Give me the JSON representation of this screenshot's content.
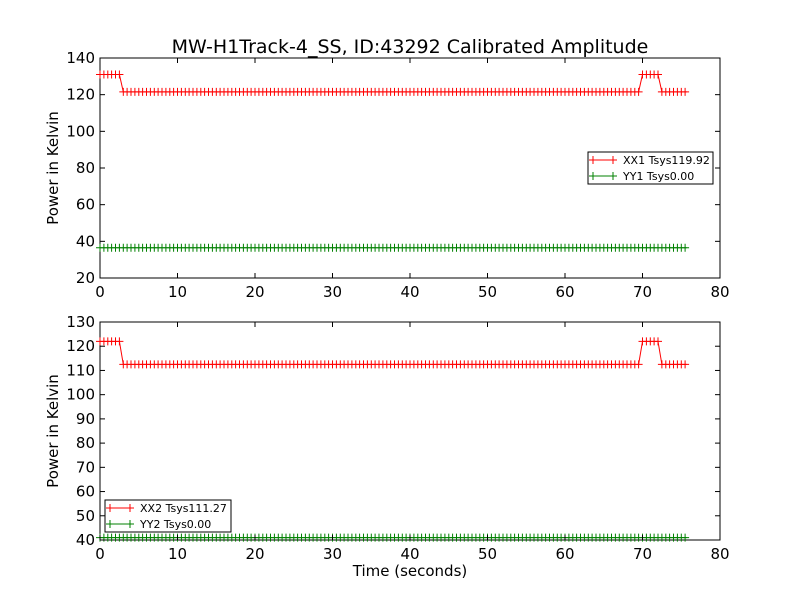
{
  "chart_data": [
    {
      "type": "line",
      "title": "MW-H1Track-4_SS, ID:43292 Calibrated Amplitude",
      "xlabel": "",
      "ylabel": "Power in Kelvin",
      "xlim": [
        0,
        80
      ],
      "ylim": [
        20,
        140
      ],
      "xticks": [
        0,
        10,
        20,
        30,
        40,
        50,
        60,
        70,
        80
      ],
      "yticks": [
        20,
        40,
        60,
        80,
        100,
        120,
        140
      ],
      "grid": false,
      "legend_position": "center-right",
      "series": [
        {
          "name": "XX1 Tsys119.92",
          "color": "#ff0000",
          "marker": "+",
          "points": [
            [
              0,
              131
            ],
            [
              2.5,
              131
            ],
            [
              3,
              121.5
            ],
            [
              69.5,
              121.5
            ],
            [
              70,
              131
            ],
            [
              72,
              131
            ],
            [
              72.5,
              121.5
            ],
            [
              75.7,
              121.5
            ]
          ]
        },
        {
          "name": "YY1 Tsys0.00",
          "color": "#008000",
          "marker": "+",
          "points": [
            [
              0,
              36.5
            ],
            [
              75.7,
              36.5
            ]
          ]
        }
      ]
    },
    {
      "type": "line",
      "title": "",
      "xlabel": "Time (seconds)",
      "ylabel": "Power in Kelvin",
      "xlim": [
        0,
        80
      ],
      "ylim": [
        40,
        130
      ],
      "xticks": [
        0,
        10,
        20,
        30,
        40,
        50,
        60,
        70,
        80
      ],
      "yticks": [
        40,
        50,
        60,
        70,
        80,
        90,
        100,
        110,
        120,
        130
      ],
      "grid": false,
      "legend_position": "lower-left",
      "series": [
        {
          "name": "XX2 Tsys111.27",
          "color": "#ff0000",
          "marker": "+",
          "points": [
            [
              0,
              122
            ],
            [
              2.5,
              122
            ],
            [
              3,
              112.5
            ],
            [
              69.5,
              112.5
            ],
            [
              70,
              122
            ],
            [
              72,
              122
            ],
            [
              72.5,
              112.5
            ],
            [
              75.7,
              112.5
            ]
          ]
        },
        {
          "name": "YY2 Tsys0.00",
          "color": "#008000",
          "marker": "+",
          "points": [
            [
              0,
              41
            ],
            [
              75.7,
              41
            ]
          ]
        }
      ]
    }
  ]
}
